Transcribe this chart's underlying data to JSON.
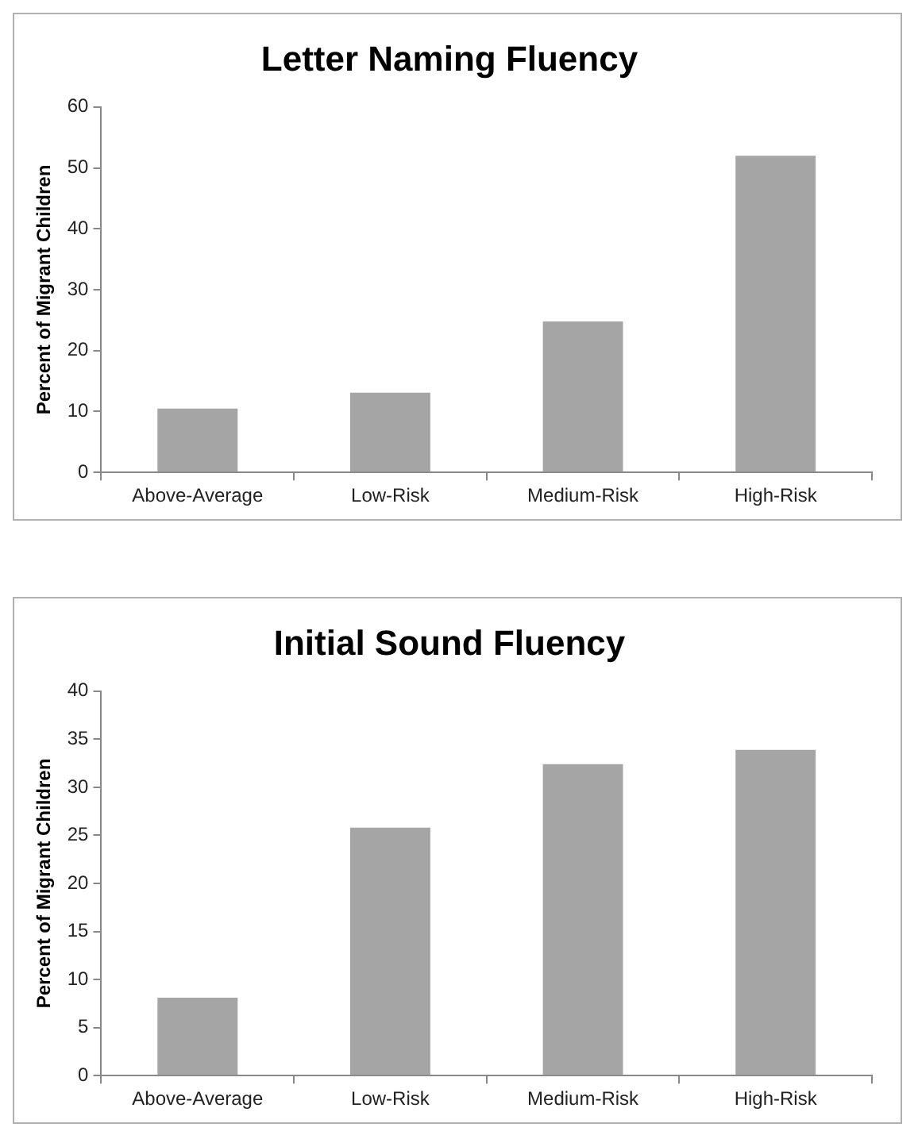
{
  "chart_data": [
    {
      "type": "bar",
      "title": "Letter Naming Fluency",
      "ylabel": "Percent of Migrant Children",
      "categories": [
        "Above-Average",
        "Low-Risk",
        "Medium-Risk",
        "High-Risk"
      ],
      "values": [
        10.5,
        13.1,
        24.8,
        52.0
      ],
      "color": "#a5a5a5",
      "ylim": [
        0,
        60
      ],
      "yticks": [
        0,
        10,
        20,
        30,
        40,
        50,
        60
      ],
      "grid": false,
      "legend": false
    },
    {
      "type": "bar",
      "title": "Initial Sound Fluency",
      "ylabel": "Percent of Migrant Children",
      "categories": [
        "Above-Average",
        "Low-Risk",
        "Medium-Risk",
        "High-Risk"
      ],
      "values": [
        8.1,
        25.8,
        32.4,
        33.9
      ],
      "color": "#a5a5a5",
      "ylim": [
        0,
        40
      ],
      "yticks": [
        0,
        5,
        10,
        15,
        20,
        25,
        30,
        35,
        40
      ],
      "grid": false,
      "legend": false
    }
  ]
}
